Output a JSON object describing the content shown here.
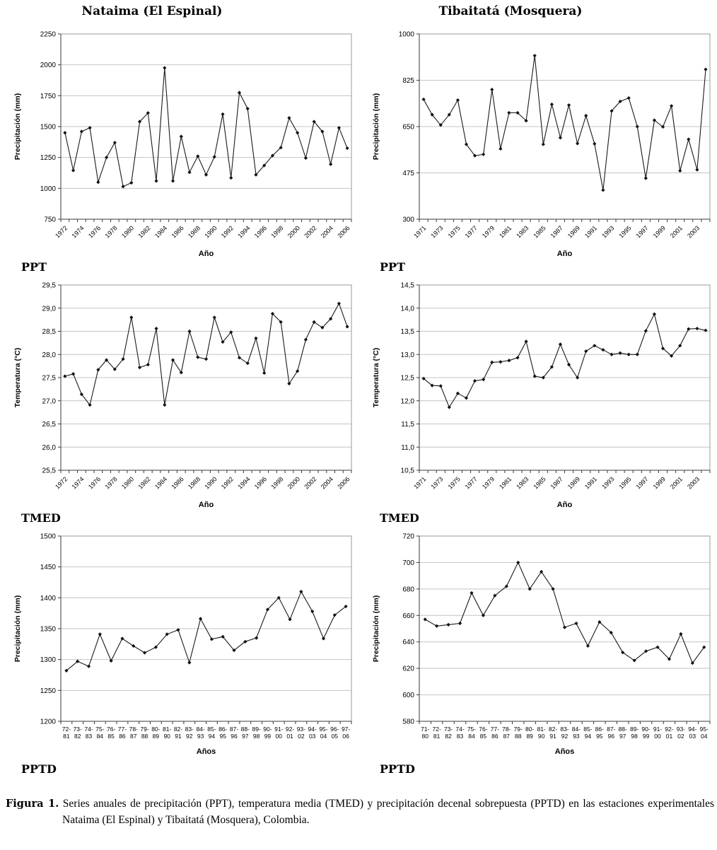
{
  "caption": {
    "label": "Figura 1.",
    "text": "Series anuales de precipitación (PPT), temperatura media (TMED) y precipitación decenal sobrepuesta (PPTD) en las estaciones experimentales Nataima (El Espinal) y Tibaitatá (Mosquera), Colombia."
  },
  "chart_data": [
    {
      "id": "nataima-ppt",
      "station": "Nataima (El Espinal)",
      "section_label": "PPT",
      "type": "line",
      "xlabel": "Año",
      "ylabel": "Precipitación (mm)",
      "ylim": [
        750,
        2250
      ],
      "ystep": 250,
      "decimal_comma": false,
      "x_rotate": true,
      "label_every": 2,
      "two_line": false,
      "grid": true,
      "categories": [
        "1972",
        "1973",
        "1974",
        "1975",
        "1976",
        "1977",
        "1978",
        "1979",
        "1980",
        "1981",
        "1982",
        "1983",
        "1984",
        "1985",
        "1986",
        "1987",
        "1988",
        "1989",
        "1990",
        "1991",
        "1992",
        "1993",
        "1994",
        "1995",
        "1996",
        "1997",
        "1998",
        "1999",
        "2000",
        "2001",
        "2002",
        "2003",
        "2004",
        "2005",
        "2006"
      ],
      "values": [
        1450,
        1145,
        1460,
        1490,
        1050,
        1250,
        1370,
        1015,
        1045,
        1540,
        1610,
        1060,
        1975,
        1060,
        1420,
        1130,
        1260,
        1110,
        1255,
        1600,
        1085,
        1775,
        1645,
        1110,
        1185,
        1265,
        1330,
        1570,
        1450,
        1245,
        1540,
        1460,
        1195,
        1490,
        1325
      ]
    },
    {
      "id": "tibaitata-ppt",
      "station": "Tibaitatá (Mosquera)",
      "section_label": "PPT",
      "type": "line",
      "xlabel": "Año",
      "ylabel": "Precipitación (mm)",
      "ylim": [
        300,
        1000
      ],
      "ystep": 175,
      "decimal_comma": false,
      "x_rotate": true,
      "label_every": 2,
      "two_line": false,
      "grid": true,
      "categories": [
        "1971",
        "1972",
        "1973",
        "1974",
        "1975",
        "1976",
        "1977",
        "1978",
        "1979",
        "1980",
        "1981",
        "1982",
        "1983",
        "1984",
        "1985",
        "1986",
        "1987",
        "1988",
        "1989",
        "1990",
        "1991",
        "1992",
        "1993",
        "1994",
        "1995",
        "1996",
        "1997",
        "1998",
        "1999",
        "2000",
        "2001",
        "2002",
        "2003",
        "2004"
      ],
      "values": [
        753,
        695,
        656,
        695,
        750,
        583,
        540,
        545,
        790,
        566,
        702,
        702,
        672,
        918,
        583,
        734,
        608,
        731,
        586,
        691,
        585,
        410,
        709,
        745,
        758,
        650,
        455,
        674,
        649,
        728,
        483,
        602,
        487,
        866
      ]
    },
    {
      "id": "nataima-tmed",
      "station": "Nataima (El Espinal)",
      "section_label": "TMED",
      "type": "line",
      "xlabel": "Año",
      "ylabel": "Temperatura (°C)",
      "ylim": [
        25.5,
        29.5
      ],
      "ystep": 0.5,
      "decimal_comma": true,
      "x_rotate": true,
      "label_every": 2,
      "two_line": false,
      "grid": true,
      "categories": [
        "1972",
        "1973",
        "1974",
        "1975",
        "1976",
        "1977",
        "1978",
        "1979",
        "1980",
        "1981",
        "1982",
        "1983",
        "1984",
        "1985",
        "1986",
        "1987",
        "1988",
        "1989",
        "1990",
        "1991",
        "1992",
        "1993",
        "1994",
        "1995",
        "1996",
        "1997",
        "1998",
        "1999",
        "2000",
        "2001",
        "2002",
        "2003",
        "2004",
        "2005",
        "2006"
      ],
      "values": [
        27.53,
        27.58,
        27.14,
        26.91,
        27.67,
        27.88,
        27.68,
        27.9,
        28.8,
        27.72,
        27.78,
        28.56,
        26.91,
        27.88,
        27.61,
        28.5,
        27.94,
        27.9,
        28.8,
        28.27,
        28.48,
        27.93,
        27.81,
        28.35,
        27.6,
        28.88,
        28.7,
        27.37,
        27.64,
        28.32,
        28.7,
        28.58,
        28.77,
        29.1,
        28.6
      ]
    },
    {
      "id": "tibaitata-tmed",
      "station": "Tibaitatá (Mosquera)",
      "section_label": "TMED",
      "type": "line",
      "xlabel": "Año",
      "ylabel": "Temperatura (°C)",
      "ylim": [
        10.5,
        14.5
      ],
      "ystep": 0.5,
      "decimal_comma": true,
      "x_rotate": true,
      "label_every": 2,
      "two_line": false,
      "grid": true,
      "categories": [
        "1971",
        "1972",
        "1973",
        "1974",
        "1975",
        "1976",
        "1977",
        "1978",
        "1979",
        "1980",
        "1981",
        "1982",
        "1983",
        "1984",
        "1985",
        "1986",
        "1987",
        "1988",
        "1989",
        "1990",
        "1991",
        "1992",
        "1993",
        "1994",
        "1995",
        "1996",
        "1997",
        "1998",
        "1999",
        "2000",
        "2001",
        "2002",
        "2003",
        "2004"
      ],
      "values": [
        12.48,
        12.33,
        12.32,
        11.86,
        12.16,
        12.06,
        12.43,
        12.46,
        12.83,
        12.84,
        12.87,
        12.93,
        13.28,
        12.53,
        12.5,
        12.73,
        13.22,
        12.78,
        12.5,
        13.07,
        13.19,
        13.1,
        13.0,
        13.03,
        13.0,
        13.0,
        13.51,
        13.87,
        13.13,
        12.97,
        13.19,
        13.55,
        13.56,
        13.52
      ]
    },
    {
      "id": "nataima-pptd",
      "station": "Nataima (El Espinal)",
      "section_label": "PPTD",
      "type": "line",
      "xlabel": "Años",
      "ylabel": "Precipitación (mm)",
      "ylim": [
        1200,
        1500
      ],
      "ystep": 50,
      "decimal_comma": false,
      "x_rotate": false,
      "label_every": 1,
      "two_line": true,
      "grid": true,
      "categories": [
        "72-81",
        "73-82",
        "74-83",
        "75-84",
        "76-85",
        "77-86",
        "78-87",
        "79-88",
        "80-89",
        "81-90",
        "82-91",
        "83-92",
        "84-93",
        "85-94",
        "86-95",
        "87-96",
        "88-97",
        "89-98",
        "90-99",
        "91-00",
        "92-01",
        "93-02",
        "94-03",
        "95-04",
        "96-05",
        "97-06"
      ],
      "values": [
        1282,
        1297,
        1289,
        1341,
        1298,
        1334,
        1322,
        1311,
        1320,
        1341,
        1348,
        1295,
        1366,
        1333,
        1337,
        1315,
        1329,
        1335,
        1381,
        1400,
        1365,
        1410,
        1378,
        1334,
        1372,
        1386
      ]
    },
    {
      "id": "tibaitata-pptd",
      "station": "Tibaitatá (Mosquera)",
      "section_label": "PPTD",
      "type": "line",
      "xlabel": "Años",
      "ylabel": "Precipitación (mm)",
      "ylim": [
        580,
        720
      ],
      "ystep": 20,
      "decimal_comma": false,
      "x_rotate": false,
      "label_every": 1,
      "two_line": true,
      "grid": true,
      "categories": [
        "71-80",
        "72-81",
        "73-82",
        "74-83",
        "75-84",
        "76-85",
        "77-86",
        "78-87",
        "79-88",
        "80-89",
        "81-90",
        "82-91",
        "83-92",
        "84-93",
        "85-94",
        "86-95",
        "87-96",
        "88-97",
        "89-98",
        "90-99",
        "91-00",
        "92-01",
        "93-02",
        "94-03",
        "95-04"
      ],
      "values": [
        657,
        652,
        653,
        654,
        677,
        660,
        675,
        682,
        700,
        680,
        693,
        680,
        651,
        654,
        637,
        655,
        647,
        632,
        626,
        633,
        636,
        627,
        646,
        624,
        636
      ]
    }
  ]
}
